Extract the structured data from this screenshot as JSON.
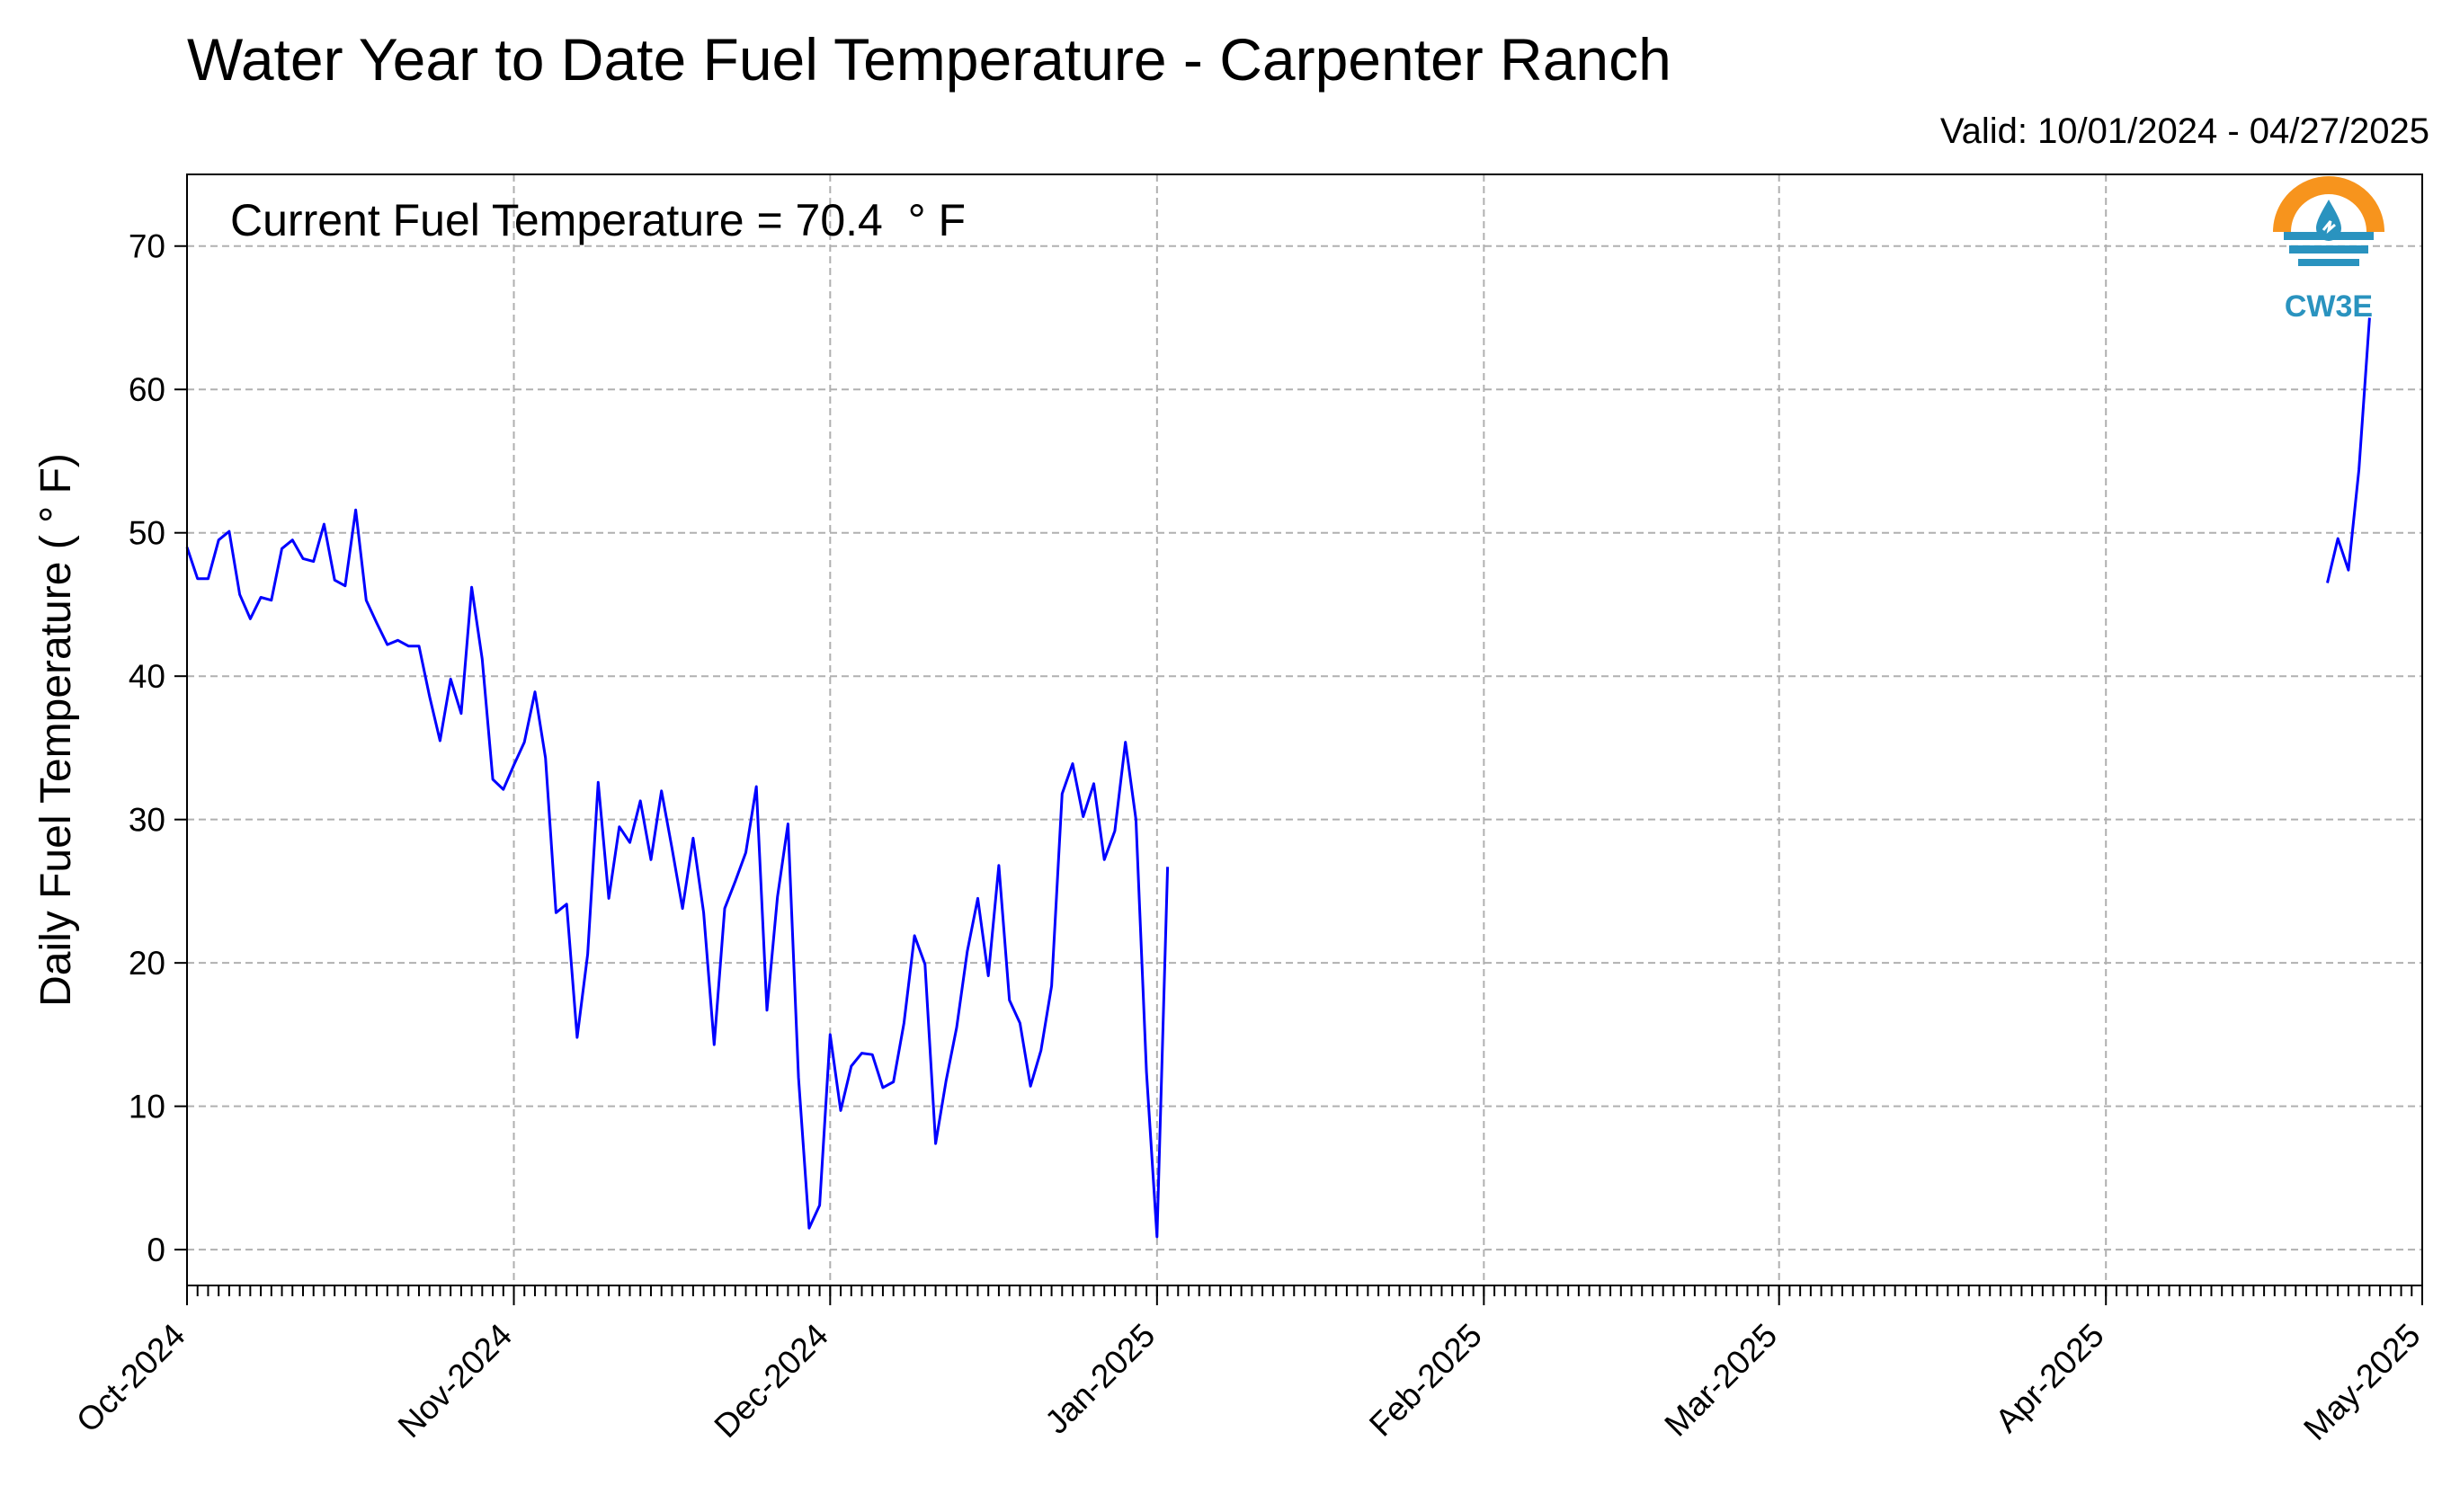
{
  "chart_data": {
    "type": "line",
    "title": "Water Year to Date Fuel Temperature - Carpenter Ranch",
    "subtitle": "Valid: 10/01/2024 - 04/27/2025",
    "ylabel": "Daily Fuel Temperature ( ° F)",
    "xlabel": "",
    "annotation": "Current Fuel Temperature = 70.4  ° F",
    "ylim": [
      -2.5,
      75
    ],
    "xlim": [
      "2024-10-01",
      "2025-05-01"
    ],
    "y_ticks": [
      0,
      10,
      20,
      30,
      40,
      50,
      60,
      70
    ],
    "x_ticks": [
      {
        "date": "2024-10-01",
        "label": "Oct-2024"
      },
      {
        "date": "2024-11-01",
        "label": "Nov-2024"
      },
      {
        "date": "2024-12-01",
        "label": "Dec-2024"
      },
      {
        "date": "2025-01-01",
        "label": "Jan-2025"
      },
      {
        "date": "2025-02-01",
        "label": "Feb-2025"
      },
      {
        "date": "2025-03-01",
        "label": "Mar-2025"
      },
      {
        "date": "2025-04-01",
        "label": "Apr-2025"
      },
      {
        "date": "2025-05-01",
        "label": "May-2025"
      }
    ],
    "grid": true,
    "line_color": "#0000ff",
    "series": [
      {
        "segments": [
          {
            "start": "2024-10-01",
            "values": [
              49.0,
              46.8,
              46.8,
              49.5,
              50.1,
              45.7,
              44.0,
              45.5,
              45.3,
              48.9,
              49.5,
              48.2,
              48.0,
              50.6,
              46.7,
              46.3,
              51.6,
              45.3,
              43.7,
              42.2,
              42.5,
              42.1,
              42.1,
              38.6,
              35.5,
              39.8,
              37.4,
              46.2,
              41.2,
              32.8,
              32.1,
              33.8,
              35.4,
              38.9,
              34.3,
              23.5,
              24.1,
              14.8,
              20.6,
              32.6,
              24.5,
              29.5,
              28.4,
              31.3,
              27.2,
              32.0,
              28.0,
              23.8,
              28.7,
              23.5,
              14.3,
              23.8,
              25.7,
              27.7,
              32.3,
              16.7,
              24.6,
              29.7,
              12.0,
              1.5,
              3.1,
              15.0,
              9.7,
              12.8,
              13.7,
              13.6,
              11.3,
              11.7,
              15.8,
              21.9,
              19.9,
              7.4,
              11.8,
              15.5,
              20.8,
              24.5,
              19.1,
              26.8,
              17.4,
              15.8,
              11.4,
              13.9,
              18.4,
              31.8,
              33.9,
              30.2,
              32.5,
              27.2,
              29.2,
              35.4,
              30.0,
              12.4,
              0.9,
              26.7
            ]
          },
          {
            "start": "2025-04-22",
            "values": [
              46.5,
              49.6,
              47.4,
              54.4,
              65.0
            ]
          }
        ]
      }
    ]
  },
  "logo": {
    "text": "CW3E",
    "icon": "cw3e-logo-icon",
    "colors": {
      "sun": "#f7941d",
      "water": "#2a93bf"
    }
  }
}
